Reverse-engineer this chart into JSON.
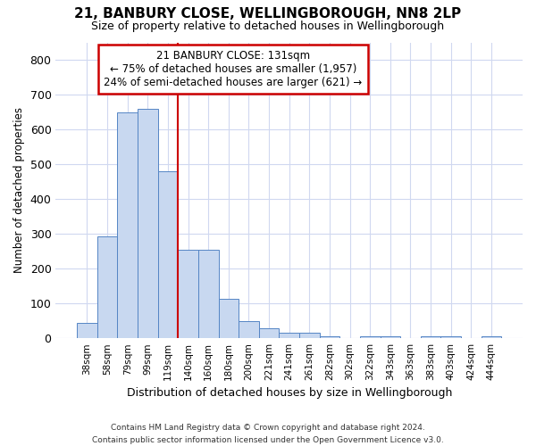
{
  "title_line1": "21, BANBURY CLOSE, WELLINGBOROUGH, NN8 2LP",
  "title_line2": "Size of property relative to detached houses in Wellingborough",
  "xlabel": "Distribution of detached houses by size in Wellingborough",
  "ylabel": "Number of detached properties",
  "footnote": "Contains HM Land Registry data © Crown copyright and database right 2024.\nContains public sector information licensed under the Open Government Licence v3.0.",
  "categories": [
    "38sqm",
    "58sqm",
    "79sqm",
    "99sqm",
    "119sqm",
    "140sqm",
    "160sqm",
    "180sqm",
    "200sqm",
    "221sqm",
    "241sqm",
    "261sqm",
    "282sqm",
    "302sqm",
    "322sqm",
    "343sqm",
    "363sqm",
    "383sqm",
    "403sqm",
    "424sqm",
    "444sqm"
  ],
  "values": [
    45,
    293,
    650,
    660,
    480,
    253,
    253,
    113,
    50,
    28,
    15,
    15,
    5,
    0,
    5,
    5,
    0,
    5,
    5,
    0,
    5
  ],
  "bar_color": "#c8d8f0",
  "bar_edge_color": "#5585c5",
  "background_color": "#ffffff",
  "plot_bg_color": "#ffffff",
  "grid_color": "#d0d8f0",
  "annotation_text": "21 BANBURY CLOSE: 131sqm\n← 75% of detached houses are smaller (1,957)\n24% of semi-detached houses are larger (621) →",
  "annotation_box_facecolor": "#ffffff",
  "annotation_box_edgecolor": "#cc0000",
  "vline_color": "#cc0000",
  "vline_x": 5.0,
  "ylim": [
    0,
    850
  ],
  "yticks": [
    0,
    100,
    200,
    300,
    400,
    500,
    600,
    700,
    800
  ]
}
